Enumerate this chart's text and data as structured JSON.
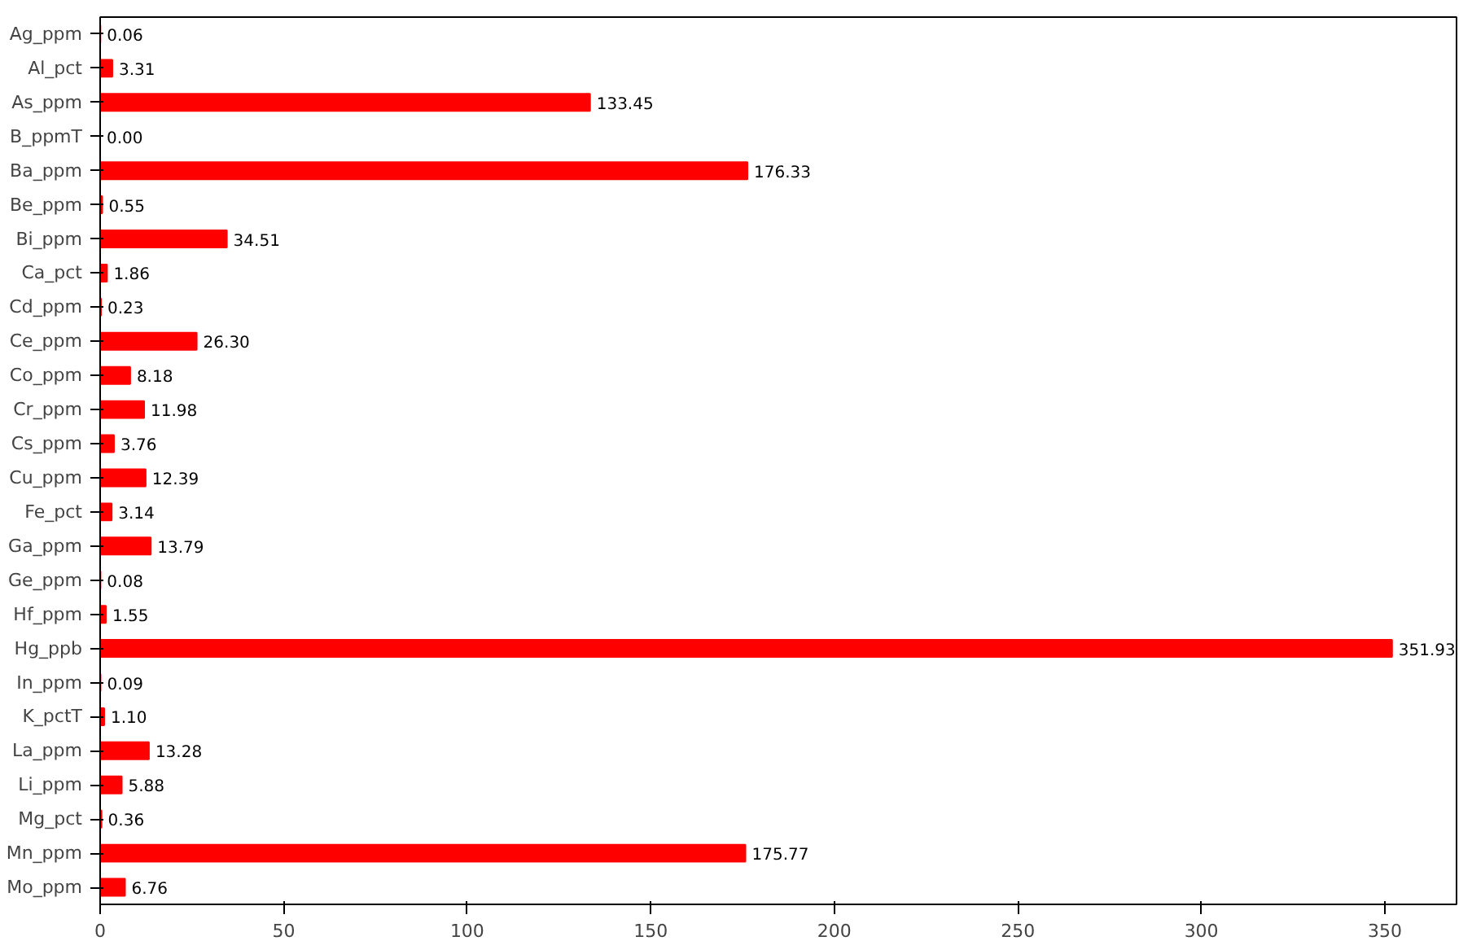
{
  "chart_data": {
    "type": "bar",
    "orientation": "horizontal",
    "color": "#ff0000",
    "categories": [
      "Ag_ppm",
      "Al_pct",
      "As_ppm",
      "B_ppmT",
      "Ba_ppm",
      "Be_ppm",
      "Bi_ppm",
      "Ca_pct",
      "Cd_ppm",
      "Ce_ppm",
      "Co_ppm",
      "Cr_ppm",
      "Cs_ppm",
      "Cu_ppm",
      "Fe_pct",
      "Ga_ppm",
      "Ge_ppm",
      "Hf_ppm",
      "Hg_ppb",
      "In_ppm",
      "K_pctT",
      "La_ppm",
      "Li_ppm",
      "Mg_pct",
      "Mn_ppm",
      "Mo_ppm"
    ],
    "values": [
      0.06,
      3.31,
      133.45,
      0.0,
      176.33,
      0.55,
      34.51,
      1.86,
      0.23,
      26.3,
      8.18,
      11.98,
      3.76,
      12.39,
      3.14,
      13.79,
      0.08,
      1.55,
      351.93,
      0.09,
      1.1,
      13.28,
      5.88,
      0.36,
      175.77,
      6.76
    ],
    "value_labels": [
      "0.06",
      "3.31",
      "133.45",
      "0.00",
      "176.33",
      "0.55",
      "34.51",
      "1.86",
      "0.23",
      "26.30",
      "8.18",
      "11.98",
      "3.76",
      "12.39",
      "3.14",
      "13.79",
      "0.08",
      "1.55",
      "351.93",
      "0.09",
      "1.10",
      "13.28",
      "5.88",
      "0.36",
      "175.77",
      "6.76"
    ],
    "xlim": [
      0,
      369.5
    ],
    "xticks": [
      0,
      50,
      100,
      150,
      200,
      250,
      300,
      350
    ],
    "grid": false
  }
}
